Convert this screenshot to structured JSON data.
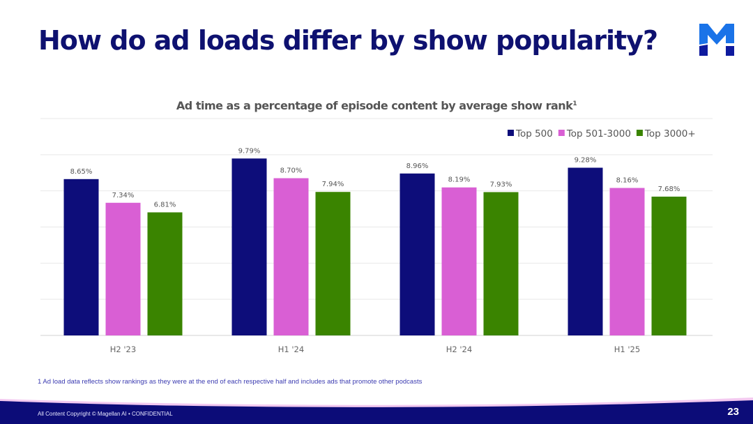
{
  "slide": {
    "title": "How do ad loads differ by show popularity?",
    "footnote": "1 Ad load data reflects show rankings as they were at the end of each respective half and includes ads that promote other podcasts",
    "copyright": "All Content Copyright © Magellan AI • CONFIDENTIAL",
    "page_number": "23",
    "logo_icon": "magellan-m-logo"
  },
  "colors": {
    "title": "#0e1170",
    "footer": "#0c0c78"
  },
  "chart_data": {
    "type": "bar",
    "title": "Ad time as a percentage of episode content by average show rank",
    "title_superscript": "1",
    "categories": [
      "H2 '23",
      "H1 '24",
      "H2 '24",
      "H1 '25"
    ],
    "series": [
      {
        "name": "Top 500",
        "color": "#0d0d7a",
        "values": [
          8.65,
          9.79,
          8.96,
          9.28
        ],
        "labels": [
          "8.65%",
          "9.79%",
          "8.96%",
          "9.28%"
        ]
      },
      {
        "name": "Top 501-3000",
        "color": "#d95fd4",
        "values": [
          7.34,
          8.7,
          8.19,
          8.16
        ],
        "labels": [
          "7.34%",
          "8.70%",
          "8.19%",
          "8.16%"
        ]
      },
      {
        "name": "Top 3000+",
        "color": "#3a8400",
        "values": [
          6.81,
          7.94,
          7.93,
          7.68
        ],
        "labels": [
          "6.81%",
          "7.94%",
          "7.93%",
          "7.68%"
        ]
      }
    ],
    "xlabel": "",
    "ylabel": "",
    "ylim": [
      0,
      12
    ],
    "grid_step": 2,
    "grid": true,
    "legend_position": "top-right"
  }
}
